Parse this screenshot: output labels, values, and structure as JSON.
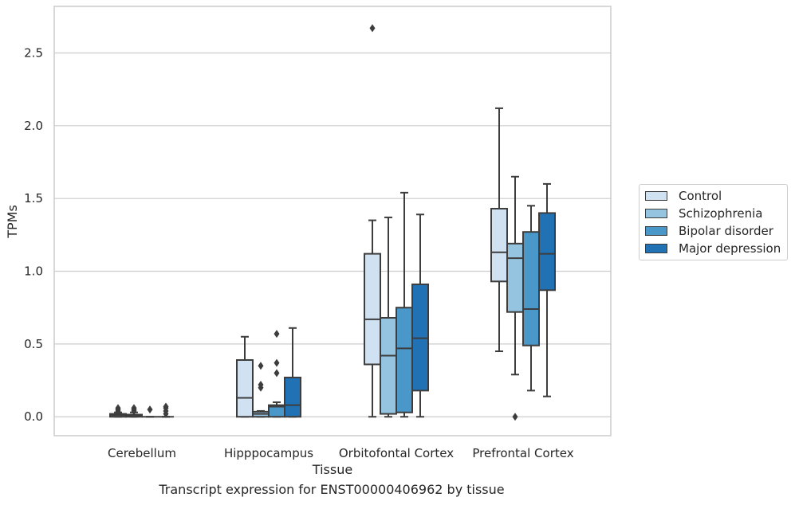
{
  "caption": "Transcript expression for ENST00000406962 by tissue",
  "chart_data": {
    "type": "boxplot",
    "xlabel": "Tissue",
    "ylabel": "TPMs",
    "ylim": [
      -0.13,
      2.82
    ],
    "yticks": [
      0.0,
      0.5,
      1.0,
      1.5,
      2.0,
      2.5
    ],
    "ytick_labels": [
      "0.0",
      "0.5",
      "1.0",
      "1.5",
      "2.0",
      "2.5"
    ],
    "grid": "horizontal",
    "legend_position": "outside-right",
    "categories": [
      "Cerebellum",
      "Hipppocampus",
      "Orbitofontal Cortex",
      "Prefrontal Cortex"
    ],
    "series": [
      {
        "name": "Control",
        "color": "#d0e1f2",
        "boxes": [
          {
            "whisker_low": 0.0,
            "q1": 0.0,
            "median": 0.01,
            "q3": 0.02,
            "whisker_high": 0.03,
            "outliers": [
              0.04,
              0.05,
              0.06
            ]
          },
          {
            "whisker_low": 0.0,
            "q1": 0.0,
            "median": 0.13,
            "q3": 0.39,
            "whisker_high": 0.55,
            "outliers": []
          },
          {
            "whisker_low": 0.0,
            "q1": 0.36,
            "median": 0.67,
            "q3": 1.12,
            "whisker_high": 1.35,
            "outliers": [
              2.67
            ]
          },
          {
            "whisker_low": 0.45,
            "q1": 0.93,
            "median": 1.13,
            "q3": 1.43,
            "whisker_high": 2.12,
            "outliers": []
          }
        ]
      },
      {
        "name": "Schizophrenia",
        "color": "#94c4df",
        "boxes": [
          {
            "whisker_low": 0.0,
            "q1": 0.0,
            "median": 0.005,
            "q3": 0.015,
            "whisker_high": 0.03,
            "outliers": [
              0.04,
              0.05,
              0.06
            ]
          },
          {
            "whisker_low": 0.0,
            "q1": 0.0,
            "median": 0.02,
            "q3": 0.035,
            "whisker_high": 0.04,
            "outliers": [
              0.2,
              0.22,
              0.35
            ]
          },
          {
            "whisker_low": 0.0,
            "q1": 0.02,
            "median": 0.42,
            "q3": 0.68,
            "whisker_high": 1.37,
            "outliers": []
          },
          {
            "whisker_low": 0.29,
            "q1": 0.72,
            "median": 1.09,
            "q3": 1.19,
            "whisker_high": 1.65,
            "outliers": [
              0.0
            ]
          }
        ]
      },
      {
        "name": "Bipolar disorder",
        "color": "#4a98c9",
        "boxes": [
          {
            "whisker_low": 0.0,
            "q1": 0.0,
            "median": 0.0,
            "q3": 0.0,
            "whisker_high": 0.0,
            "outliers": [
              0.05
            ]
          },
          {
            "whisker_low": 0.0,
            "q1": 0.0,
            "median": 0.07,
            "q3": 0.08,
            "whisker_high": 0.1,
            "outliers": [
              0.3,
              0.37,
              0.57
            ]
          },
          {
            "whisker_low": 0.0,
            "q1": 0.03,
            "median": 0.47,
            "q3": 0.75,
            "whisker_high": 1.54,
            "outliers": []
          },
          {
            "whisker_low": 0.18,
            "q1": 0.49,
            "median": 0.74,
            "q3": 1.27,
            "whisker_high": 1.45,
            "outliers": []
          }
        ]
      },
      {
        "name": "Major depression",
        "color": "#2171b5",
        "boxes": [
          {
            "whisker_low": 0.0,
            "q1": 0.0,
            "median": 0.0,
            "q3": 0.0,
            "whisker_high": 0.0,
            "outliers": [
              0.02,
              0.04,
              0.06,
              0.07
            ]
          },
          {
            "whisker_low": 0.0,
            "q1": 0.0,
            "median": 0.08,
            "q3": 0.27,
            "whisker_high": 0.61,
            "outliers": []
          },
          {
            "whisker_low": 0.0,
            "q1": 0.18,
            "median": 0.54,
            "q3": 0.91,
            "whisker_high": 1.39,
            "outliers": []
          },
          {
            "whisker_low": 0.14,
            "q1": 0.87,
            "median": 1.12,
            "q3": 1.4,
            "whisker_high": 1.6,
            "outliers": []
          }
        ]
      }
    ]
  }
}
